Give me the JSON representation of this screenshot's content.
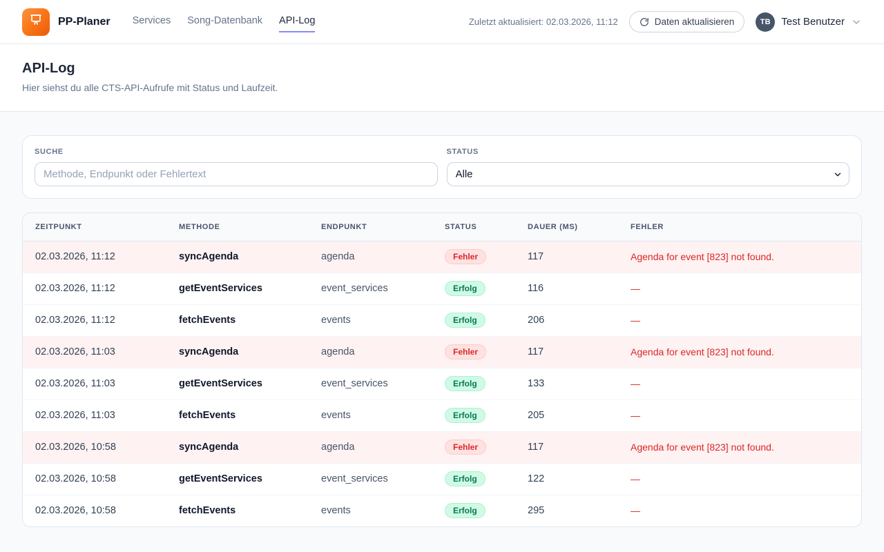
{
  "brand": {
    "name": "PP-Planer"
  },
  "nav": {
    "items": [
      {
        "label": "Services",
        "active": false
      },
      {
        "label": "Song-Datenbank",
        "active": false
      },
      {
        "label": "API-Log",
        "active": true
      }
    ]
  },
  "topbar": {
    "last_updated": "Zuletzt aktualisiert: 02.03.2026, 11:12",
    "refresh_button_label": "Daten aktualisieren",
    "user": {
      "initials": "TB",
      "name": "Test Benutzer"
    }
  },
  "page": {
    "title": "API-Log",
    "subtitle": "Hier siehst du alle CTS-API-Aufrufe mit Status und Laufzeit."
  },
  "filters": {
    "search_label": "SUCHE",
    "search_placeholder": "Methode, Endpunkt oder Fehlertext",
    "search_value": "",
    "status_label": "STATUS",
    "status_selected": "Alle"
  },
  "table": {
    "columns": [
      "ZEITPUNKT",
      "METHODE",
      "ENDPUNKT",
      "STATUS",
      "DAUER (MS)",
      "FEHLER"
    ],
    "rows": [
      {
        "time": "02.03.2026, 11:12",
        "method": "syncAgenda",
        "endpoint": "agenda",
        "status": "Fehler",
        "duration": "117",
        "error": "Agenda for event [823] not found."
      },
      {
        "time": "02.03.2026, 11:12",
        "method": "getEventServices",
        "endpoint": "event_services",
        "status": "Erfolg",
        "duration": "116",
        "error": "—"
      },
      {
        "time": "02.03.2026, 11:12",
        "method": "fetchEvents",
        "endpoint": "events",
        "status": "Erfolg",
        "duration": "206",
        "error": "—"
      },
      {
        "time": "02.03.2026, 11:03",
        "method": "syncAgenda",
        "endpoint": "agenda",
        "status": "Fehler",
        "duration": "117",
        "error": "Agenda for event [823] not found."
      },
      {
        "time": "02.03.2026, 11:03",
        "method": "getEventServices",
        "endpoint": "event_services",
        "status": "Erfolg",
        "duration": "133",
        "error": "—"
      },
      {
        "time": "02.03.2026, 11:03",
        "method": "fetchEvents",
        "endpoint": "events",
        "status": "Erfolg",
        "duration": "205",
        "error": "—"
      },
      {
        "time": "02.03.2026, 10:58",
        "method": "syncAgenda",
        "endpoint": "agenda",
        "status": "Fehler",
        "duration": "117",
        "error": "Agenda for event [823] not found."
      },
      {
        "time": "02.03.2026, 10:58",
        "method": "getEventServices",
        "endpoint": "event_services",
        "status": "Erfolg",
        "duration": "122",
        "error": "—"
      },
      {
        "time": "02.03.2026, 10:58",
        "method": "fetchEvents",
        "endpoint": "events",
        "status": "Erfolg",
        "duration": "295",
        "error": "—"
      }
    ],
    "status_labels": {
      "error": "Fehler",
      "success": "Erfolg"
    }
  },
  "icons": {
    "logo": "presentation-board-icon",
    "refresh": "refresh-icon",
    "user_chevron": "chevron-down-icon",
    "select_chevron": "chevron-down-icon"
  },
  "colors": {
    "accent_orange": "#f97316",
    "active_tab_underline": "#818cf8",
    "error_text": "#dc2626",
    "error_row_bg": "#fef2f2",
    "error_badge_bg": "#fee2e2",
    "error_badge_border": "#fecaca",
    "success_text": "#047857",
    "success_badge_bg": "#d1fae5",
    "success_badge_border": "#a7f3d0",
    "avatar_bg": "#475569",
    "page_bg": "#f8fafc"
  }
}
